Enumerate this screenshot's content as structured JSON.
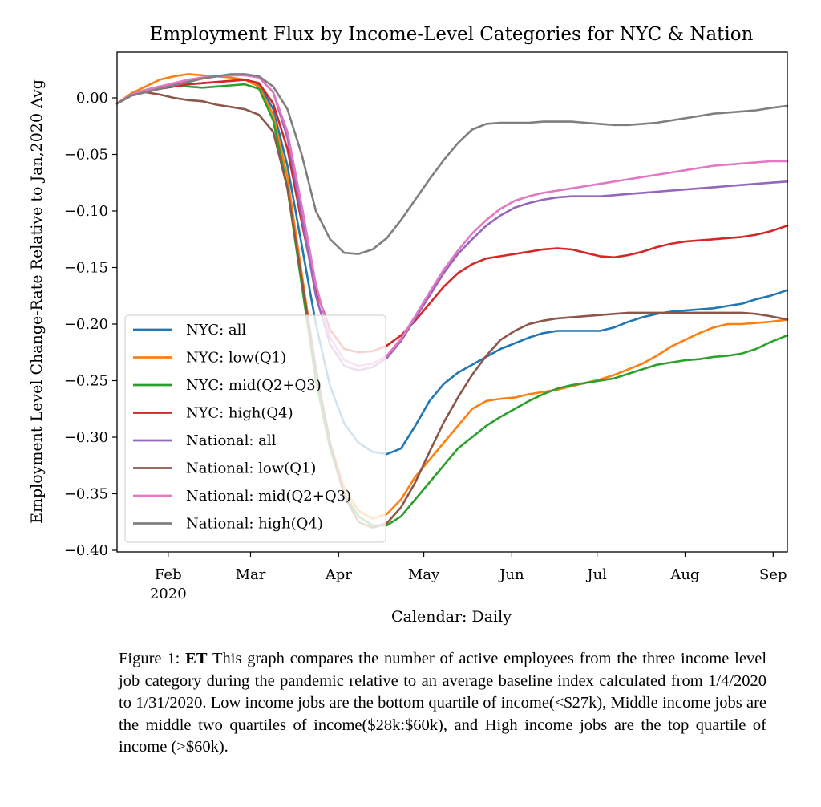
{
  "chart_data": {
    "type": "line",
    "title": "Employment Flux by Income-Level Categories for NYC & Nation",
    "xlabel": "Calendar: Daily",
    "ylabel": "Employment Level Change-Rate Relative to Jan,2020 Avg",
    "xlim": [
      0,
      236
    ],
    "ylim": [
      -0.4,
      0.04
    ],
    "x_ticks": [
      {
        "x": 18,
        "label": "Feb",
        "sub": "2020"
      },
      {
        "x": 47,
        "label": "Mar"
      },
      {
        "x": 78,
        "label": "Apr"
      },
      {
        "x": 108,
        "label": "May"
      },
      {
        "x": 139,
        "label": "Jun"
      },
      {
        "x": 169,
        "label": "Jul"
      },
      {
        "x": 200,
        "label": "Aug"
      },
      {
        "x": 231,
        "label": "Sep"
      }
    ],
    "y_ticks": [
      0.0,
      -0.05,
      -0.1,
      -0.15,
      -0.2,
      -0.25,
      -0.3,
      -0.35,
      -0.4
    ],
    "y_tick_labels": [
      "0.00",
      "−0.05",
      "−0.10",
      "−0.15",
      "−0.20",
      "−0.25",
      "−0.30",
      "−0.35",
      "−0.40"
    ],
    "x": [
      0,
      5,
      10,
      15,
      20,
      25,
      30,
      35,
      40,
      45,
      50,
      55,
      60,
      65,
      70,
      75,
      80,
      85,
      90,
      95,
      100,
      105,
      110,
      115,
      120,
      125,
      130,
      135,
      140,
      145,
      150,
      155,
      160,
      165,
      170,
      175,
      180,
      185,
      190,
      195,
      200,
      205,
      210,
      215,
      220,
      225,
      230,
      236
    ],
    "legend_position": "lower-left",
    "series": [
      {
        "name": "NYC: all",
        "color": "#1f77b4",
        "values": [
          -0.005,
          0.002,
          0.006,
          0.008,
          0.01,
          0.012,
          0.013,
          0.014,
          0.015,
          0.016,
          0.012,
          -0.01,
          -0.06,
          -0.13,
          -0.2,
          -0.255,
          -0.288,
          -0.305,
          -0.313,
          -0.315,
          -0.31,
          -0.29,
          -0.268,
          -0.253,
          -0.243,
          -0.236,
          -0.229,
          -0.222,
          -0.217,
          -0.212,
          -0.208,
          -0.206,
          -0.206,
          -0.206,
          -0.206,
          -0.203,
          -0.198,
          -0.194,
          -0.191,
          -0.189,
          -0.188,
          -0.187,
          -0.186,
          -0.184,
          -0.182,
          -0.178,
          -0.175,
          -0.17
        ]
      },
      {
        "name": "NYC: low(Q1)",
        "color": "#ff7f0e",
        "values": [
          -0.005,
          0.004,
          0.01,
          0.016,
          0.019,
          0.021,
          0.02,
          0.019,
          0.018,
          0.016,
          0.01,
          -0.015,
          -0.07,
          -0.155,
          -0.24,
          -0.305,
          -0.345,
          -0.365,
          -0.372,
          -0.368,
          -0.355,
          -0.335,
          -0.32,
          -0.305,
          -0.29,
          -0.275,
          -0.268,
          -0.266,
          -0.265,
          -0.262,
          -0.26,
          -0.258,
          -0.255,
          -0.252,
          -0.249,
          -0.245,
          -0.24,
          -0.235,
          -0.228,
          -0.22,
          -0.214,
          -0.208,
          -0.203,
          -0.2,
          -0.2,
          -0.199,
          -0.198,
          -0.196
        ]
      },
      {
        "name": "NYC: mid(Q2+Q3)",
        "color": "#2ca02c",
        "values": [
          -0.005,
          0.003,
          0.007,
          0.01,
          0.011,
          0.01,
          0.009,
          0.01,
          0.011,
          0.012,
          0.008,
          -0.02,
          -0.08,
          -0.165,
          -0.25,
          -0.31,
          -0.35,
          -0.37,
          -0.378,
          -0.378,
          -0.37,
          -0.355,
          -0.34,
          -0.325,
          -0.31,
          -0.3,
          -0.29,
          -0.282,
          -0.275,
          -0.268,
          -0.262,
          -0.257,
          -0.254,
          -0.252,
          -0.25,
          -0.248,
          -0.244,
          -0.24,
          -0.236,
          -0.234,
          -0.232,
          -0.231,
          -0.229,
          -0.228,
          -0.226,
          -0.222,
          -0.216,
          -0.21
        ]
      },
      {
        "name": "NYC: high(Q4)",
        "color": "#d62728",
        "values": [
          -0.005,
          0.002,
          0.005,
          0.008,
          0.01,
          0.012,
          0.013,
          0.014,
          0.015,
          0.016,
          0.013,
          -0.005,
          -0.045,
          -0.11,
          -0.17,
          -0.205,
          -0.222,
          -0.225,
          -0.224,
          -0.219,
          -0.21,
          -0.197,
          -0.182,
          -0.167,
          -0.155,
          -0.147,
          -0.142,
          -0.14,
          -0.138,
          -0.136,
          -0.134,
          -0.133,
          -0.134,
          -0.137,
          -0.14,
          -0.141,
          -0.139,
          -0.136,
          -0.132,
          -0.129,
          -0.127,
          -0.126,
          -0.125,
          -0.124,
          -0.123,
          -0.121,
          -0.118,
          -0.113
        ]
      },
      {
        "name": "National: all",
        "color": "#9467bd",
        "values": [
          -0.005,
          0.002,
          0.006,
          0.009,
          0.012,
          0.015,
          0.017,
          0.019,
          0.02,
          0.02,
          0.018,
          0.005,
          -0.035,
          -0.105,
          -0.175,
          -0.218,
          -0.237,
          -0.241,
          -0.238,
          -0.23,
          -0.215,
          -0.195,
          -0.175,
          -0.155,
          -0.138,
          -0.125,
          -0.113,
          -0.104,
          -0.097,
          -0.093,
          -0.09,
          -0.088,
          -0.087,
          -0.087,
          -0.087,
          -0.086,
          -0.085,
          -0.084,
          -0.083,
          -0.082,
          -0.081,
          -0.08,
          -0.079,
          -0.078,
          -0.077,
          -0.076,
          -0.075,
          -0.074
        ]
      },
      {
        "name": "National: low(Q1)",
        "color": "#8c564b",
        "values": [
          -0.005,
          0.003,
          0.005,
          0.003,
          0.0,
          -0.002,
          -0.003,
          -0.006,
          -0.008,
          -0.01,
          -0.015,
          -0.03,
          -0.08,
          -0.16,
          -0.24,
          -0.305,
          -0.352,
          -0.375,
          -0.38,
          -0.376,
          -0.362,
          -0.34,
          -0.313,
          -0.287,
          -0.265,
          -0.245,
          -0.228,
          -0.214,
          -0.206,
          -0.2,
          -0.197,
          -0.195,
          -0.194,
          -0.193,
          -0.192,
          -0.191,
          -0.19,
          -0.19,
          -0.19,
          -0.19,
          -0.19,
          -0.19,
          -0.19,
          -0.19,
          -0.19,
          -0.191,
          -0.193,
          -0.196
        ]
      },
      {
        "name": "National: mid(Q2+Q3)",
        "color": "#e377c2",
        "values": [
          -0.005,
          0.003,
          0.007,
          0.01,
          0.013,
          0.016,
          0.018,
          0.019,
          0.02,
          0.02,
          0.018,
          0.005,
          -0.03,
          -0.095,
          -0.165,
          -0.212,
          -0.232,
          -0.237,
          -0.235,
          -0.228,
          -0.213,
          -0.193,
          -0.172,
          -0.152,
          -0.135,
          -0.12,
          -0.108,
          -0.098,
          -0.091,
          -0.087,
          -0.084,
          -0.082,
          -0.08,
          -0.078,
          -0.076,
          -0.074,
          -0.072,
          -0.07,
          -0.068,
          -0.066,
          -0.064,
          -0.062,
          -0.06,
          -0.059,
          -0.058,
          -0.057,
          -0.056,
          -0.056
        ]
      },
      {
        "name": "National: high(Q4)",
        "color": "#7f7f7f",
        "values": [
          -0.005,
          0.002,
          0.005,
          0.008,
          0.011,
          0.014,
          0.017,
          0.019,
          0.021,
          0.021,
          0.019,
          0.01,
          -0.01,
          -0.05,
          -0.1,
          -0.125,
          -0.137,
          -0.138,
          -0.134,
          -0.124,
          -0.108,
          -0.09,
          -0.072,
          -0.055,
          -0.04,
          -0.028,
          -0.023,
          -0.022,
          -0.022,
          -0.022,
          -0.021,
          -0.021,
          -0.021,
          -0.022,
          -0.023,
          -0.024,
          -0.024,
          -0.023,
          -0.022,
          -0.02,
          -0.018,
          -0.016,
          -0.014,
          -0.013,
          -0.012,
          -0.011,
          -0.009,
          -0.007
        ]
      }
    ]
  },
  "caption": {
    "prefix": "Figure 1:",
    "bold": "ET",
    "text": "This graph compares the number of active employees from the three income level job category during the pandemic relative to an average baseline index calculated from 1/4/2020 to 1/31/2020. Low income jobs are the bottom quartile of income(<$27k), Middle income jobs are the middle two quartiles of income($28k:$60k), and High income jobs are the top quartile of income (>$60k)."
  }
}
